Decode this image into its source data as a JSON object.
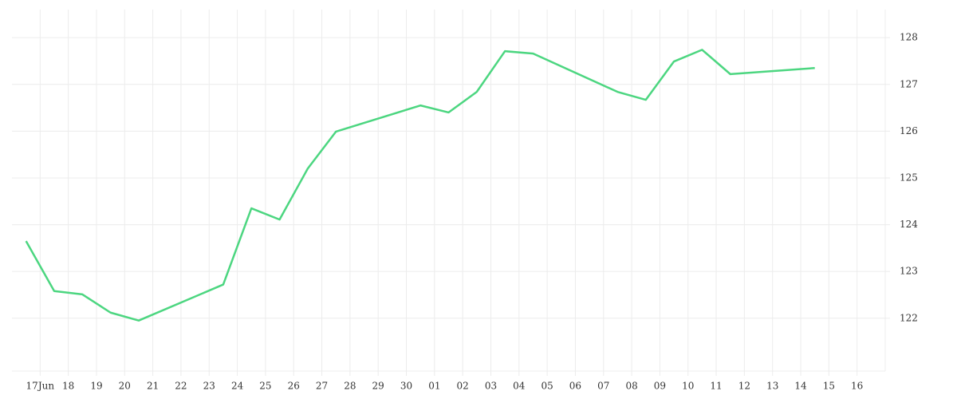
{
  "chart_data": {
    "type": "line",
    "x": [
      -0.5,
      0.5,
      1.5,
      2.5,
      3.5,
      6.5,
      7.5,
      8.5,
      9.5,
      10.5,
      13.5,
      14.5,
      15.5,
      16.5,
      17.5,
      20.5,
      21.5,
      22.5,
      23.5,
      24.5,
      27.5
    ],
    "series": [
      {
        "color": "#4cd680",
        "values": [
          123.65,
          122.58,
          122.51,
          122.12,
          121.95,
          122.72,
          124.35,
          124.11,
          125.2,
          125.99,
          126.55,
          126.4,
          126.84,
          127.71,
          127.66,
          126.84,
          126.67,
          127.49,
          127.74,
          127.22,
          127.35
        ]
      }
    ],
    "xlim": [
      -1,
      30
    ],
    "xticks": [
      {
        "value": 0,
        "label": "17Jun"
      },
      {
        "value": 1,
        "label": "18"
      },
      {
        "value": 2,
        "label": "19"
      },
      {
        "value": 3,
        "label": "20"
      },
      {
        "value": 4,
        "label": "21"
      },
      {
        "value": 5,
        "label": "22"
      },
      {
        "value": 6,
        "label": "23"
      },
      {
        "value": 7,
        "label": "24"
      },
      {
        "value": 8,
        "label": "25"
      },
      {
        "value": 9,
        "label": "26"
      },
      {
        "value": 10,
        "label": "27"
      },
      {
        "value": 11,
        "label": "28"
      },
      {
        "value": 12,
        "label": "29"
      },
      {
        "value": 13,
        "label": "30"
      },
      {
        "value": 14,
        "label": "01"
      },
      {
        "value": 15,
        "label": "02"
      },
      {
        "value": 16,
        "label": "03"
      },
      {
        "value": 17,
        "label": "04"
      },
      {
        "value": 18,
        "label": "05"
      },
      {
        "value": 19,
        "label": "06"
      },
      {
        "value": 20,
        "label": "07"
      },
      {
        "value": 21,
        "label": "08"
      },
      {
        "value": 22,
        "label": "09"
      },
      {
        "value": 23,
        "label": "10"
      },
      {
        "value": 24,
        "label": "11"
      },
      {
        "value": 25,
        "label": "12"
      },
      {
        "value": 26,
        "label": "13"
      },
      {
        "value": 27,
        "label": "14"
      },
      {
        "value": 28,
        "label": "15"
      },
      {
        "value": 29,
        "label": "16"
      }
    ],
    "ylim": [
      120.87,
      128.6
    ],
    "yticks": [
      122,
      123,
      124,
      125,
      126,
      127,
      128
    ],
    "grid": true
  }
}
